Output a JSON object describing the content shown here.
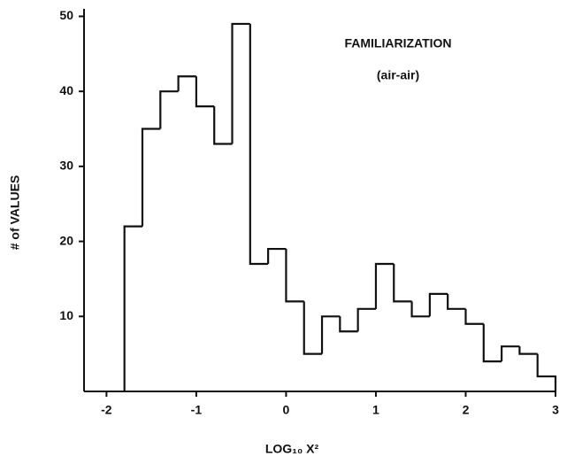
{
  "chart_data": {
    "type": "histogram",
    "annotations": [
      "FAMILIARIZATION",
      "(air-air)"
    ],
    "x_label": "LOG₁₀ X²",
    "y_label": "# of VALUES",
    "bins": [
      -1.8,
      -1.6,
      -1.4,
      -1.2,
      -1.0,
      -0.8,
      -0.6,
      -0.4,
      -0.2,
      0,
      0.2,
      0.4,
      0.6,
      0.8,
      1.0,
      1.2,
      1.4,
      1.6,
      1.8,
      2.0,
      2.2,
      2.4,
      2.6,
      2.8,
      3.0
    ],
    "values": [
      22,
      35,
      40,
      42,
      38,
      33,
      49,
      17,
      19,
      12,
      5,
      10,
      8,
      11,
      17,
      12,
      10,
      13,
      11,
      9,
      4,
      6,
      5,
      2
    ],
    "color": "#111111",
    "xlim": [
      -2.25,
      3
    ],
    "xticks": [
      -2,
      -1,
      0,
      1,
      2,
      3
    ],
    "ylim": [
      0,
      51
    ],
    "yticks": [
      10,
      20,
      30,
      40,
      50
    ]
  }
}
